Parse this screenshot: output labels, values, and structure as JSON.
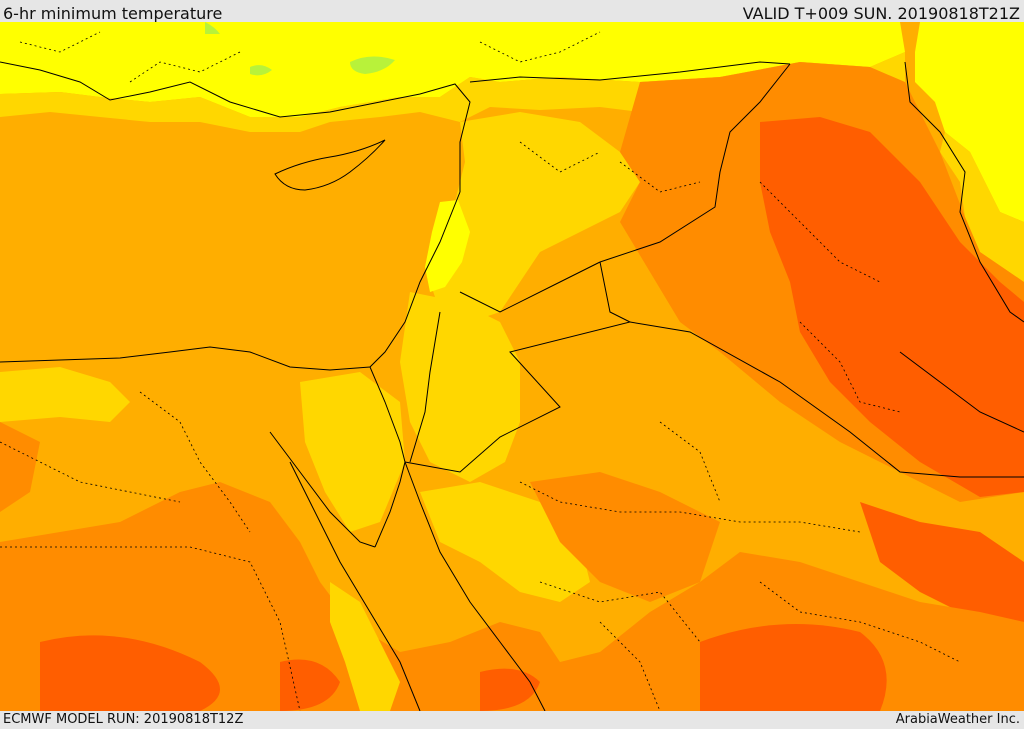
{
  "header": {
    "title": "6-hr minimum temperature",
    "valid": "VALID T+009 SUN. 20190818T21Z"
  },
  "footer": {
    "model_run": "ECMWF MODEL RUN: 20190818T12Z",
    "credit": "ArabiaWeather Inc."
  },
  "map": {
    "palette": {
      "light_yellow": "#ffff00",
      "yellow": "#ffd700",
      "light_orange": "#ffae00",
      "orange": "#ff8c00",
      "dark_orange": "#ff5e00",
      "green_patch": "#b8f23a",
      "border": "#000000"
    }
  }
}
